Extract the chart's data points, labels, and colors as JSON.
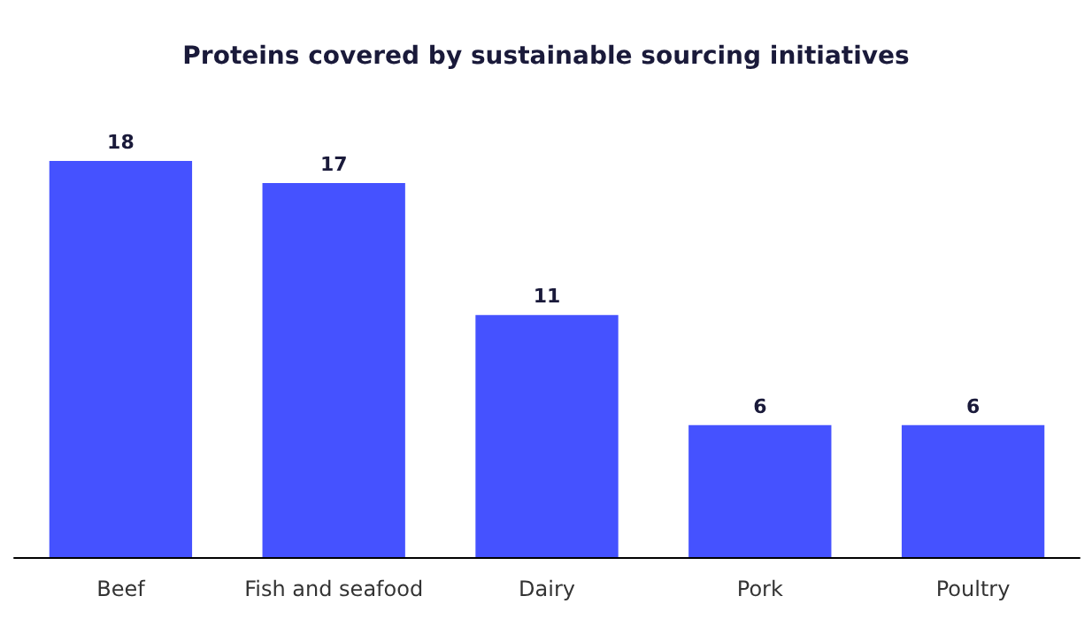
{
  "chart_data": {
    "type": "bar",
    "title": "Proteins covered by sustainable sourcing initiatives",
    "categories": [
      "Beef",
      "Fish and seafood",
      "Dairy",
      "Pork",
      "Poultry"
    ],
    "values": [
      18,
      17,
      11,
      6,
      6
    ],
    "color": "#4552ff",
    "data_labels": true
  }
}
